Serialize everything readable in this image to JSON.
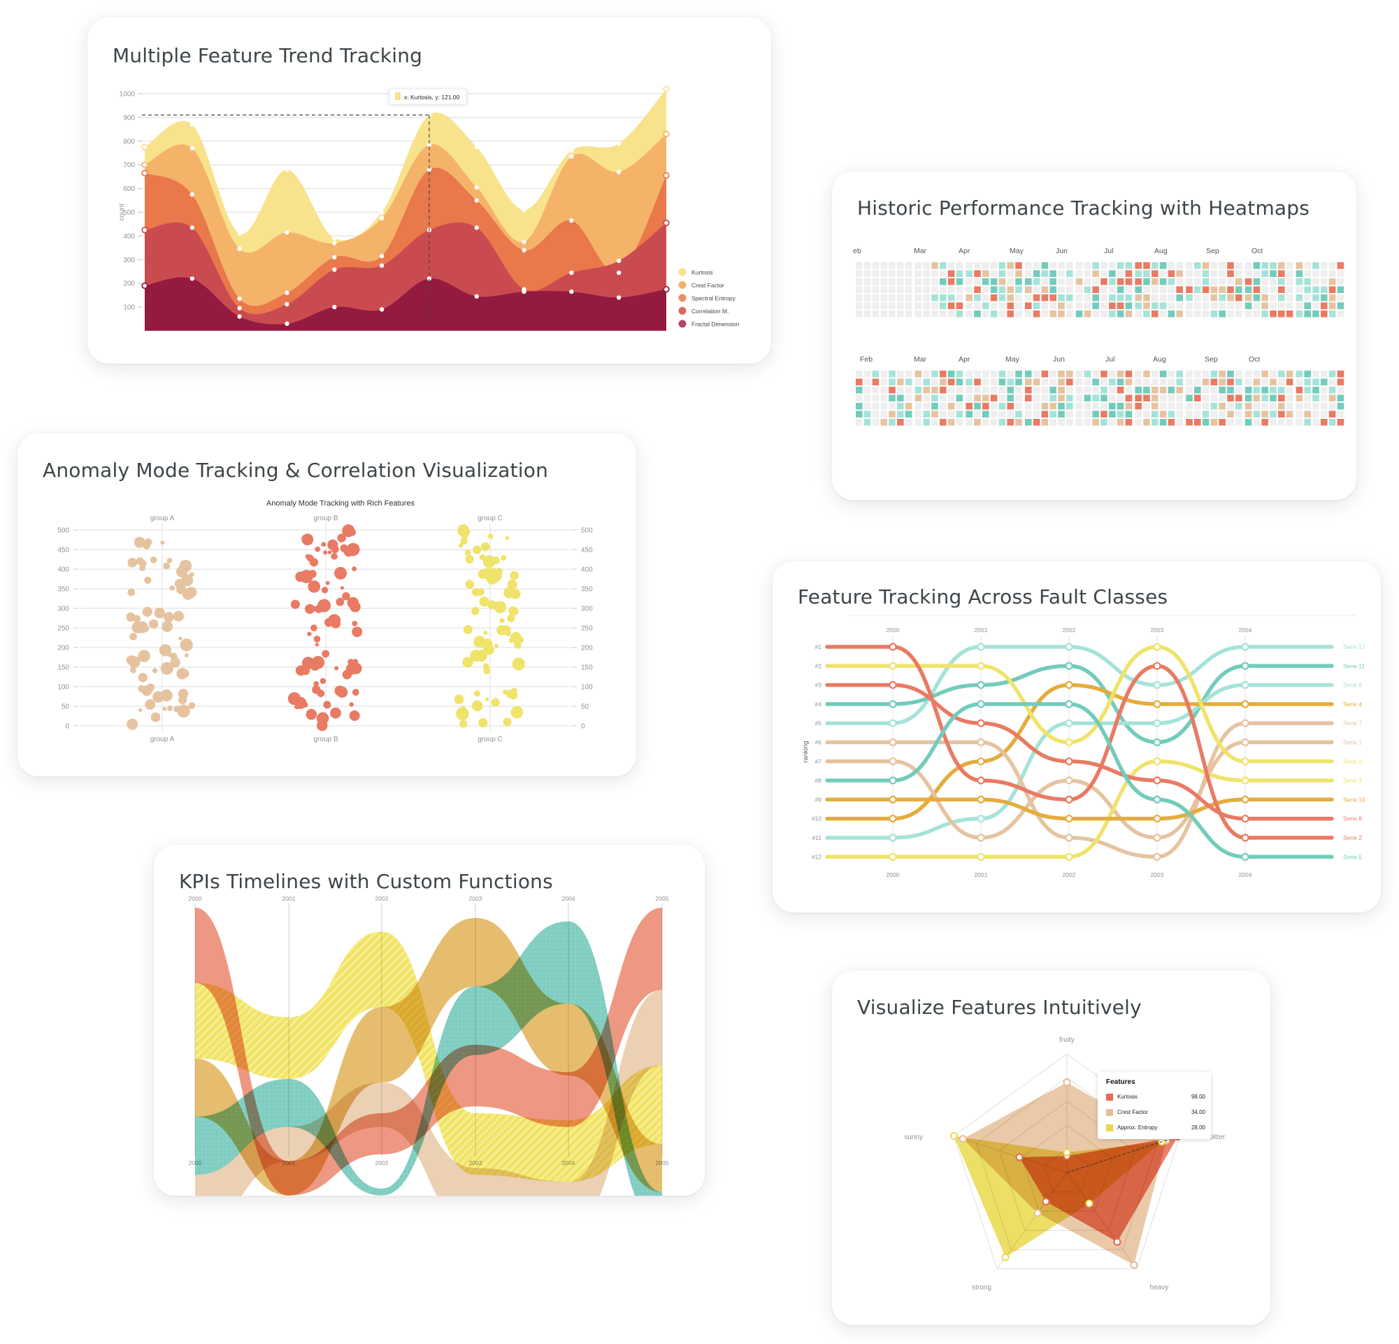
{
  "cards": {
    "trend": {
      "title": "Multiple Feature Trend Tracking"
    },
    "heatmap": {
      "title": "Historic Performance Tracking with Heatmaps"
    },
    "anomaly": {
      "title": "Anomaly Mode Tracking & Correlation Visualization"
    },
    "ranking": {
      "title": "Feature Tracking Across Fault Classes"
    },
    "kpi": {
      "title": "KPIs Timelines with Custom Functions"
    },
    "radar": {
      "title": "Visualize Features Intuitively"
    }
  },
  "chart_data": [
    {
      "id": "trend",
      "type": "area",
      "stacked": true,
      "title": "Multiple Feature Trend Tracking",
      "ylabel": "count",
      "yticks": [
        100,
        200,
        300,
        400,
        500,
        600,
        700,
        800,
        900,
        1000
      ],
      "ylim": [
        0,
        1000
      ],
      "x": [
        1,
        2,
        3,
        4,
        5,
        6,
        7,
        8,
        9,
        10,
        11,
        12
      ],
      "series_cumulative_tops": [
        {
          "name": "Kurtosis",
          "color": "#f9e28c",
          "values": [
            775,
            870,
            410,
            680,
            390,
            500,
            910,
            775,
            510,
            760,
            790,
            1020
          ]
        },
        {
          "name": "Crest Factor",
          "color": "#f5b36a",
          "values": [
            700,
            770,
            345,
            415,
            370,
            475,
            785,
            605,
            375,
            735,
            670,
            830
          ]
        },
        {
          "name": "Spectral Entropy",
          "color": "#e9784b",
          "values": [
            665,
            575,
            135,
            160,
            310,
            315,
            680,
            550,
            340,
            465,
            245,
            655
          ]
        },
        {
          "name": "Correlation M.",
          "color": "#c94b50",
          "values": [
            425,
            435,
            95,
            112,
            258,
            275,
            425,
            435,
            175,
            245,
            295,
            455
          ]
        },
        {
          "name": "Fractal Dimension",
          "color": "#951a40",
          "values": [
            190,
            220,
            60,
            30,
            100,
            90,
            220,
            145,
            165,
            165,
            140,
            175
          ]
        }
      ],
      "tooltip": {
        "text": "x: Kurtosis,  y: 121.00",
        "swatch": "#f9e28c"
      },
      "crosshair": {
        "x_index": 6,
        "y": 910
      },
      "legend": [
        "Kurtosis",
        "Crest Factor",
        "Spectral Entropy",
        "Correlation M.",
        "Fractal Dimension"
      ],
      "legend_position": "right"
    },
    {
      "id": "heatmap",
      "type": "heatmap",
      "title": "Historic Performance Tracking with Heatmaps",
      "blocks": [
        {
          "months": [
            "eb",
            "Mar",
            "Apr",
            "May",
            "Jun",
            "Jul",
            "Aug",
            "Sep",
            "Oct"
          ]
        },
        {
          "months": [
            "Feb",
            "Mar",
            "Apr",
            "May",
            "Jun",
            "Jul",
            "Aug",
            "Sep",
            "Oct"
          ]
        }
      ],
      "rows_per_block": 7,
      "palette": {
        "empty": "#eeeeee",
        "light_teal": "#a5e3d8",
        "teal": "#72ccbb",
        "tan": "#e6c3a0",
        "coral": "#e97a63"
      }
    },
    {
      "id": "anomaly",
      "type": "scatter",
      "title": "Anomaly Mode Tracking with Rich Features",
      "categories": [
        "group A",
        "group B",
        "group C"
      ],
      "yticks": [
        0,
        50,
        100,
        150,
        200,
        250,
        300,
        350,
        400,
        450,
        500
      ],
      "ylim": [
        0,
        500
      ],
      "series": [
        {
          "name": "group A",
          "color": "#e6c3a0",
          "bands": [
            [
              0,
              100
            ],
            [
              120,
              300
            ],
            [
              330,
              470
            ]
          ]
        },
        {
          "name": "group B",
          "color": "#e97a63",
          "bands": [
            [
              0,
              120
            ],
            [
              130,
              270
            ],
            [
              280,
              500
            ]
          ]
        },
        {
          "name": "group C",
          "color": "#efe36a",
          "bands": [
            [
              0,
              90
            ],
            [
              140,
              280
            ],
            [
              290,
              500
            ]
          ]
        }
      ]
    },
    {
      "id": "ranking",
      "type": "line",
      "subtype": "bump",
      "title": "Feature Tracking Across Fault Classes",
      "ylabel": "ranking",
      "x": [
        "2000",
        "2001",
        "2002",
        "2003",
        "2004"
      ],
      "ranks": [
        "#1",
        "#2",
        "#3",
        "#4",
        "#5",
        "#6",
        "#7",
        "#8",
        "#9",
        "#10",
        "#11",
        "#12"
      ],
      "series": [
        {
          "name": "Serie 12",
          "color": "#a5e3d8",
          "values": [
            5,
            1,
            1,
            3,
            1
          ]
        },
        {
          "name": "Serie 11",
          "color": "#72ccbb",
          "values": [
            4,
            3,
            2,
            6,
            2
          ]
        },
        {
          "name": "Serie 6",
          "color": "#a5e3d8",
          "values": [
            11,
            10,
            5,
            5,
            3
          ]
        },
        {
          "name": "Serie 4",
          "color": "#e3ad3e",
          "values": [
            10,
            7,
            3,
            4,
            4
          ]
        },
        {
          "name": "Serie 7",
          "color": "#e6c3a0",
          "values": [
            6,
            6,
            11,
            12,
            5
          ]
        },
        {
          "name": "Serie 1",
          "color": "#e6c3a0",
          "values": [
            7,
            11,
            8,
            11,
            6
          ]
        },
        {
          "name": "Serie 9",
          "color": "#efe36a",
          "values": [
            2,
            2,
            6,
            1,
            7
          ]
        },
        {
          "name": "Serie 3",
          "color": "#efe36a",
          "values": [
            12,
            12,
            12,
            7,
            8
          ]
        },
        {
          "name": "Serie 10",
          "color": "#e3ad3e",
          "values": [
            9,
            9,
            10,
            10,
            9
          ]
        },
        {
          "name": "Serie 8",
          "color": "#e97a63",
          "values": [
            3,
            5,
            7,
            8,
            10
          ]
        },
        {
          "name": "Serie 2",
          "color": "#e97a63",
          "values": [
            1,
            8,
            9,
            2,
            11
          ]
        },
        {
          "name": "Serie 5",
          "color": "#72ccbb",
          "values": [
            8,
            4,
            4,
            9,
            12
          ]
        }
      ],
      "legend_position": "right"
    },
    {
      "id": "kpi",
      "type": "area",
      "subtype": "ribbon",
      "title": "KPIs Timelines with Custom Functions",
      "x": [
        "2000",
        "2001",
        "2002",
        "2003",
        "2004",
        "2005"
      ],
      "series": [
        {
          "name": "coral",
          "color": "#ec8a72",
          "bands": [
            [
              0,
              110
            ],
            [
              370,
              420
            ],
            [
              300,
              360
            ],
            [
              200,
              290
            ],
            [
              240,
              320
            ],
            [
              0,
              120
            ]
          ]
        },
        {
          "name": "yellow-striped",
          "color": "#efe04f",
          "bands": [
            [
              110,
              220
            ],
            [
              160,
              250
            ],
            [
              35,
              145
            ],
            [
              300,
              390
            ],
            [
              310,
              400
            ],
            [
              230,
              345
            ]
          ]
        },
        {
          "name": "gold",
          "color": "#e3b45a",
          "bands": [
            [
              220,
              305
            ],
            [
              370,
              420
            ],
            [
              145,
              255
            ],
            [
              15,
              115
            ],
            [
              140,
              245
            ],
            [
              345,
              415
            ]
          ]
        },
        {
          "name": "teal-dotted",
          "color": "#6fc6b8",
          "bands": [
            [
              305,
              390
            ],
            [
              250,
              320
            ],
            [
              410,
              420
            ],
            [
              115,
              215
            ],
            [
              20,
              140
            ],
            [
              415,
              470
            ]
          ]
        },
        {
          "name": "tan",
          "color": "#e8c9aa",
          "bands": [
            [
              390,
              470
            ],
            [
              320,
              370
            ],
            [
              255,
              320
            ],
            [
              380,
              470
            ],
            [
              400,
              470
            ],
            [
              120,
              230
            ]
          ]
        }
      ]
    },
    {
      "id": "radar",
      "type": "radar",
      "title": "Visualize Features Intuitively",
      "axes": [
        "fruity",
        "bitter",
        "heavy",
        "strong",
        "sunny"
      ],
      "series": [
        {
          "name": "Kurtosis",
          "color": "#e96a4e",
          "value": "98.00",
          "values": [
            14,
            98,
            72,
            30,
            42
          ]
        },
        {
          "name": "Crest Factor",
          "color": "#e6bf99",
          "value": "34.00",
          "values": [
            76,
            88,
            96,
            42,
            92
          ]
        },
        {
          "name": "Approx. Entropy",
          "color": "#ead94a",
          "value": "28.00",
          "values": [
            17,
            84,
            32,
            88,
            100
          ]
        }
      ],
      "tooltip_title": "Features"
    }
  ],
  "legend_trend": [
    {
      "label": "Kurtosis",
      "color": "#f9e28c"
    },
    {
      "label": "Crest Factor",
      "color": "#f5b36a"
    },
    {
      "label": "Spectral Entropy",
      "color": "#ec8d5e"
    },
    {
      "label": "Correlation M.",
      "color": "#d96a62"
    },
    {
      "label": "Fractal Dimension",
      "color": "#b8456a"
    }
  ],
  "trend_tooltip": "x: Kurtosis,  y: 121.00",
  "trend_ylabel": "count",
  "anomaly_subtitle": "Anomaly Mode Tracking with Rich Features",
  "ranking_ylabel": "ranking",
  "radar_tooltip": {
    "title": "Features",
    "rows": [
      {
        "label": "Kurtosis",
        "value": "98.00",
        "color": "#e96a4e"
      },
      {
        "label": "Crest Factor",
        "value": "34.00",
        "color": "#e6bf99"
      },
      {
        "label": "Approx. Entropy",
        "value": "28.00",
        "color": "#ead94a"
      }
    ]
  }
}
